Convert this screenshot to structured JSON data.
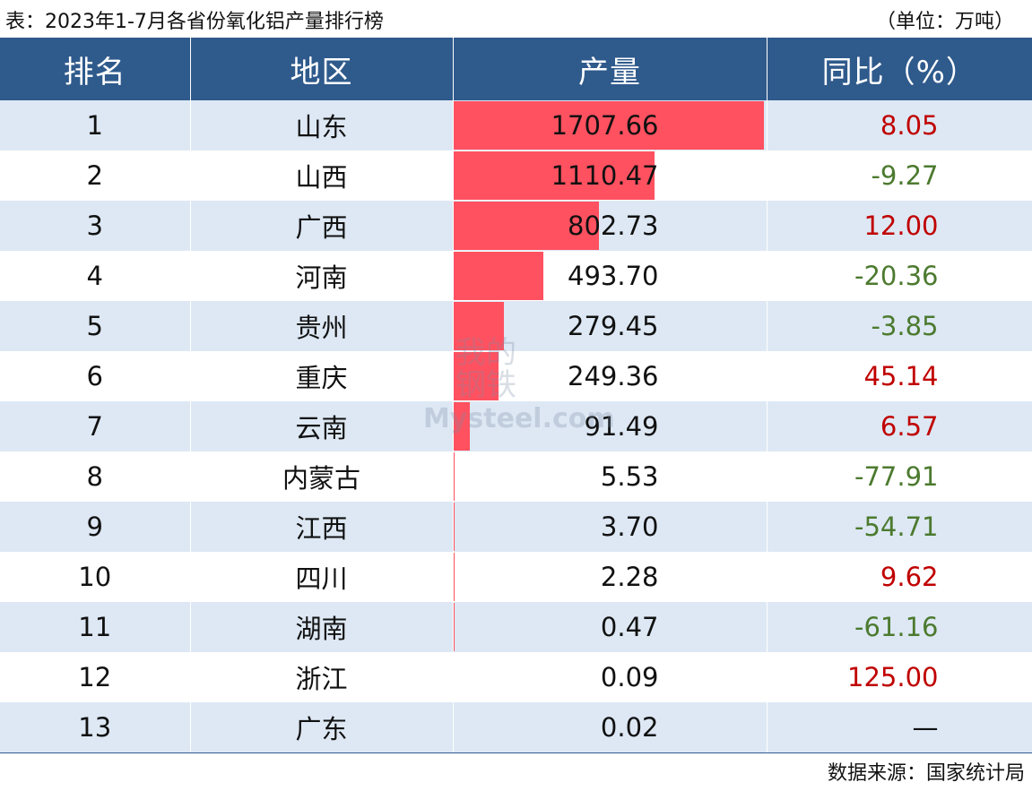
{
  "caption": {
    "title": "表：2023年1-7月各省份氧化铝产量排行榜",
    "unit": "（单位：万吨）"
  },
  "chart_data": {
    "type": "table",
    "columns": [
      "排名",
      "地区",
      "产量",
      "同比（%）"
    ],
    "rows": [
      {
        "rank": "1",
        "region": "山东",
        "output": "1707.66",
        "output_value": 1707.66,
        "yoy": "8.05",
        "trend": "up"
      },
      {
        "rank": "2",
        "region": "山西",
        "output": "1110.47",
        "output_value": 1110.47,
        "yoy": "-9.27",
        "trend": "down"
      },
      {
        "rank": "3",
        "region": "广西",
        "output": "802.73",
        "output_value": 802.73,
        "yoy": "12.00",
        "trend": "up"
      },
      {
        "rank": "4",
        "region": "河南",
        "output": "493.70",
        "output_value": 493.7,
        "yoy": "-20.36",
        "trend": "down"
      },
      {
        "rank": "5",
        "region": "贵州",
        "output": "279.45",
        "output_value": 279.45,
        "yoy": "-3.85",
        "trend": "down"
      },
      {
        "rank": "6",
        "region": "重庆",
        "output": "249.36",
        "output_value": 249.36,
        "yoy": "45.14",
        "trend": "up"
      },
      {
        "rank": "7",
        "region": "云南",
        "output": "91.49",
        "output_value": 91.49,
        "yoy": "6.57",
        "trend": "up"
      },
      {
        "rank": "8",
        "region": "内蒙古",
        "output": "5.53",
        "output_value": 5.53,
        "yoy": "-77.91",
        "trend": "down"
      },
      {
        "rank": "9",
        "region": "江西",
        "output": "3.70",
        "output_value": 3.7,
        "yoy": "-54.71",
        "trend": "down"
      },
      {
        "rank": "10",
        "region": "四川",
        "output": "2.28",
        "output_value": 2.28,
        "yoy": "9.62",
        "trend": "up"
      },
      {
        "rank": "11",
        "region": "湖南",
        "output": "0.47",
        "output_value": 0.47,
        "yoy": "-61.16",
        "trend": "down"
      },
      {
        "rank": "12",
        "region": "浙江",
        "output": "0.09",
        "output_value": 0.09,
        "yoy": "125.00",
        "trend": "up"
      },
      {
        "rank": "13",
        "region": "广东",
        "output": "0.02",
        "output_value": 0.02,
        "yoy": "—",
        "trend": "none"
      }
    ],
    "bar_max": 1707.66
  },
  "colors": {
    "header_bg": "#2f5a8c",
    "row_alt_bg": "#dde8f4",
    "bar": "#ff5160",
    "positive": "#c00000",
    "negative": "#4c7a2f"
  },
  "source": "数据来源：国家统计局",
  "watermark": {
    "cn": "我的钢铁",
    "en": "Mysteel.com"
  }
}
